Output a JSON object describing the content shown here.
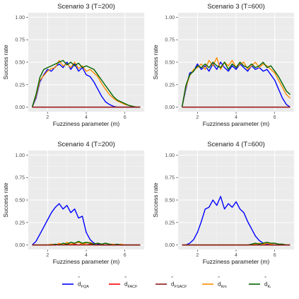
{
  "legend": [
    {
      "key": "fqa",
      "hat": "d",
      "sub": "FQA",
      "color": "#0000ff"
    },
    {
      "key": "facf",
      "hat": "d",
      "sub": "FACF",
      "color": "#ff0000"
    },
    {
      "key": "fsacf",
      "hat": "d",
      "sub": "FSACF",
      "color": "#8b1a1a"
    },
    {
      "key": "km",
      "hat": "d",
      "sub": "Km",
      "color": "#ff8c00"
    },
    {
      "key": "k",
      "hat": "d",
      "sub": "Kₗ",
      "color": "#006400"
    }
  ],
  "chart_data": [
    {
      "type": "line",
      "title": "Scenario 3 (T=200)",
      "xlabel": "Fuzziness parameter (m)",
      "ylabel": "Success rate",
      "xlim": [
        1,
        7
      ],
      "ylim": [
        0,
        1
      ],
      "x_ticks": [
        "2",
        "4",
        "6"
      ],
      "y_ticks": [
        "0.00",
        "0.25",
        "0.50",
        "0.75",
        "1.00"
      ],
      "x": [
        1.2,
        1.4,
        1.6,
        1.8,
        2.0,
        2.2,
        2.4,
        2.6,
        2.8,
        3.0,
        3.2,
        3.4,
        3.6,
        3.8,
        4.0,
        4.2,
        4.4,
        4.6,
        4.8,
        5.0,
        5.2,
        5.4,
        5.6,
        5.8,
        6.0,
        6.2,
        6.4,
        6.6,
        6.8
      ],
      "series": [
        {
          "key": "fqa",
          "values": [
            0.0,
            0.1,
            0.28,
            0.36,
            0.42,
            0.4,
            0.45,
            0.48,
            0.44,
            0.5,
            0.42,
            0.48,
            0.4,
            0.44,
            0.36,
            0.34,
            0.28,
            0.2,
            0.12,
            0.06,
            0.03,
            0.01,
            0.0,
            0.0,
            0.0,
            0.0,
            0.0,
            0.0,
            0.0
          ]
        },
        {
          "key": "facf",
          "values": [
            0.0,
            0.0,
            0.0,
            0.0,
            0.0,
            0.0,
            0.0,
            0.0,
            0.0,
            0.0,
            0.0,
            0.0,
            0.0,
            0.0,
            0.0,
            0.0,
            0.0,
            0.0,
            0.0,
            0.0,
            0.0,
            0.0,
            0.0,
            0.0,
            0.0,
            0.0,
            0.0,
            0.0,
            0.0
          ]
        },
        {
          "key": "fsacf",
          "values": [
            0.0,
            0.0,
            0.0,
            0.0,
            0.0,
            0.0,
            0.0,
            0.0,
            0.0,
            0.0,
            0.0,
            0.0,
            0.0,
            0.0,
            0.0,
            0.0,
            0.0,
            0.0,
            0.0,
            0.0,
            0.0,
            0.0,
            0.0,
            0.0,
            0.0,
            0.0,
            0.0,
            0.0,
            0.0
          ]
        },
        {
          "key": "km",
          "values": [
            0.0,
            0.12,
            0.3,
            0.35,
            0.4,
            0.43,
            0.44,
            0.52,
            0.46,
            0.48,
            0.44,
            0.5,
            0.43,
            0.46,
            0.4,
            0.42,
            0.38,
            0.34,
            0.26,
            0.2,
            0.14,
            0.1,
            0.07,
            0.05,
            0.03,
            0.02,
            0.01,
            0.0,
            0.0
          ]
        },
        {
          "key": "k",
          "values": [
            0.0,
            0.14,
            0.33,
            0.42,
            0.44,
            0.46,
            0.48,
            0.5,
            0.52,
            0.47,
            0.5,
            0.46,
            0.49,
            0.44,
            0.46,
            0.44,
            0.42,
            0.36,
            0.3,
            0.24,
            0.18,
            0.12,
            0.08,
            0.06,
            0.04,
            0.02,
            0.01,
            0.0,
            0.0
          ]
        }
      ]
    },
    {
      "type": "line",
      "title": "Scenario 3 (T=600)",
      "xlabel": "Fuzziness parameter (m)",
      "ylabel": "Success rate",
      "xlim": [
        1,
        7
      ],
      "ylim": [
        0,
        1
      ],
      "x_ticks": [
        "2",
        "4",
        "6"
      ],
      "y_ticks": [
        "0.00",
        "0.25",
        "0.50",
        "0.75",
        "1.00"
      ],
      "x": [
        1.2,
        1.4,
        1.6,
        1.8,
        2.0,
        2.2,
        2.4,
        2.6,
        2.8,
        3.0,
        3.2,
        3.4,
        3.6,
        3.8,
        4.0,
        4.2,
        4.4,
        4.6,
        4.8,
        5.0,
        5.2,
        5.4,
        5.6,
        5.8,
        6.0,
        6.2,
        6.4,
        6.6,
        6.8
      ],
      "series": [
        {
          "key": "fqa",
          "values": [
            0.0,
            0.2,
            0.38,
            0.4,
            0.48,
            0.42,
            0.46,
            0.4,
            0.48,
            0.42,
            0.5,
            0.44,
            0.4,
            0.46,
            0.42,
            0.48,
            0.44,
            0.4,
            0.46,
            0.42,
            0.44,
            0.4,
            0.42,
            0.36,
            0.3,
            0.2,
            0.1,
            0.03,
            0.0
          ]
        },
        {
          "key": "facf",
          "values": [
            0.0,
            0.0,
            0.0,
            0.0,
            0.0,
            0.0,
            0.0,
            0.0,
            0.0,
            0.0,
            0.0,
            0.0,
            0.0,
            0.0,
            0.0,
            0.0,
            0.0,
            0.0,
            0.0,
            0.0,
            0.0,
            0.0,
            0.0,
            0.0,
            0.0,
            0.0,
            0.0,
            0.0,
            0.0
          ]
        },
        {
          "key": "fsacf",
          "values": [
            0.0,
            0.0,
            0.0,
            0.0,
            0.0,
            0.0,
            0.0,
            0.0,
            0.0,
            0.0,
            0.0,
            0.0,
            0.0,
            0.0,
            0.0,
            0.0,
            0.0,
            0.0,
            0.0,
            0.0,
            0.0,
            0.0,
            0.0,
            0.0,
            0.0,
            0.0,
            0.0,
            0.0,
            0.0
          ]
        },
        {
          "key": "km",
          "values": [
            0.0,
            0.22,
            0.35,
            0.42,
            0.44,
            0.48,
            0.42,
            0.52,
            0.46,
            0.55,
            0.42,
            0.5,
            0.46,
            0.52,
            0.44,
            0.48,
            0.5,
            0.42,
            0.46,
            0.5,
            0.44,
            0.48,
            0.46,
            0.42,
            0.38,
            0.3,
            0.22,
            0.14,
            0.1
          ]
        },
        {
          "key": "k",
          "values": [
            0.0,
            0.24,
            0.36,
            0.4,
            0.46,
            0.44,
            0.48,
            0.44,
            0.5,
            0.46,
            0.44,
            0.5,
            0.42,
            0.48,
            0.44,
            0.5,
            0.46,
            0.44,
            0.48,
            0.44,
            0.46,
            0.5,
            0.44,
            0.46,
            0.4,
            0.34,
            0.26,
            0.18,
            0.14
          ]
        }
      ]
    },
    {
      "type": "line",
      "title": "Scenario 4 (T=200)",
      "xlabel": "Fuzziness parameter (m)",
      "ylabel": "Success rate",
      "xlim": [
        1,
        7
      ],
      "ylim": [
        0,
        1
      ],
      "x_ticks": [
        "2",
        "4",
        "6"
      ],
      "y_ticks": [
        "0.00",
        "0.25",
        "0.50",
        "0.75",
        "1.00"
      ],
      "x": [
        1.2,
        1.4,
        1.6,
        1.8,
        2.0,
        2.2,
        2.4,
        2.6,
        2.8,
        3.0,
        3.2,
        3.4,
        3.6,
        3.8,
        4.0,
        4.2,
        4.4,
        4.6,
        4.8,
        5.0,
        5.2,
        5.4,
        5.6,
        5.8,
        6.0,
        6.2,
        6.4,
        6.6,
        6.8
      ],
      "series": [
        {
          "key": "fqa",
          "values": [
            0.0,
            0.04,
            0.12,
            0.2,
            0.28,
            0.36,
            0.42,
            0.46,
            0.4,
            0.44,
            0.36,
            0.4,
            0.3,
            0.32,
            0.14,
            0.06,
            0.02,
            0.01,
            0.0,
            0.0,
            0.0,
            0.0,
            0.0,
            0.0,
            0.0,
            0.0,
            0.0,
            0.0,
            0.0
          ]
        },
        {
          "key": "facf",
          "values": [
            0.0,
            0.0,
            0.0,
            0.0,
            0.0,
            0.0,
            0.0,
            0.01,
            0.0,
            0.01,
            0.0,
            0.01,
            0.0,
            0.01,
            0.0,
            0.01,
            0.0,
            0.0,
            0.0,
            0.0,
            0.0,
            0.0,
            0.0,
            0.0,
            0.0,
            0.0,
            0.0,
            0.0,
            0.0
          ]
        },
        {
          "key": "fsacf",
          "values": [
            0.0,
            0.0,
            0.0,
            0.0,
            0.0,
            0.0,
            0.0,
            0.0,
            0.0,
            0.0,
            0.0,
            0.0,
            0.0,
            0.0,
            0.0,
            0.0,
            0.0,
            0.0,
            0.0,
            0.0,
            0.0,
            0.0,
            0.0,
            0.0,
            0.0,
            0.0,
            0.0,
            0.0,
            0.0
          ]
        },
        {
          "key": "km",
          "values": [
            0.0,
            0.0,
            0.0,
            0.0,
            0.0,
            0.01,
            0.0,
            0.02,
            0.0,
            0.03,
            0.01,
            0.02,
            0.03,
            0.01,
            0.02,
            0.03,
            0.01,
            0.02,
            0.01,
            0.02,
            0.01,
            0.01,
            0.0,
            0.01,
            0.0,
            0.0,
            0.0,
            0.0,
            0.0
          ]
        },
        {
          "key": "k",
          "values": [
            0.0,
            0.0,
            0.0,
            0.0,
            0.0,
            0.0,
            0.01,
            0.0,
            0.02,
            0.01,
            0.03,
            0.02,
            0.04,
            0.02,
            0.03,
            0.02,
            0.01,
            0.02,
            0.01,
            0.02,
            0.01,
            0.0,
            0.01,
            0.0,
            0.0,
            0.0,
            0.0,
            0.0,
            0.0
          ]
        }
      ]
    },
    {
      "type": "line",
      "title": "Scenario 4 (T=600)",
      "xlabel": "Fuzziness parameter (m)",
      "ylabel": "Success rate",
      "xlim": [
        1,
        7
      ],
      "ylim": [
        0,
        1
      ],
      "x_ticks": [
        "2",
        "4",
        "6"
      ],
      "y_ticks": [
        "0.00",
        "0.25",
        "0.50",
        "0.75",
        "1.00"
      ],
      "x": [
        1.2,
        1.4,
        1.6,
        1.8,
        2.0,
        2.2,
        2.4,
        2.6,
        2.8,
        3.0,
        3.2,
        3.4,
        3.6,
        3.8,
        4.0,
        4.2,
        4.4,
        4.6,
        4.8,
        5.0,
        5.2,
        5.4,
        5.6,
        5.8,
        6.0,
        6.2,
        6.4,
        6.6,
        6.8
      ],
      "series": [
        {
          "key": "fqa",
          "values": [
            0.0,
            0.0,
            0.02,
            0.06,
            0.14,
            0.26,
            0.4,
            0.42,
            0.5,
            0.44,
            0.54,
            0.4,
            0.46,
            0.42,
            0.48,
            0.4,
            0.36,
            0.26,
            0.18,
            0.1,
            0.05,
            0.02,
            0.01,
            0.0,
            0.0,
            0.0,
            0.0,
            0.0,
            0.0
          ]
        },
        {
          "key": "facf",
          "values": [
            0.0,
            0.0,
            0.0,
            0.0,
            0.0,
            0.0,
            0.0,
            0.0,
            0.0,
            0.0,
            0.0,
            0.0,
            0.0,
            0.0,
            0.0,
            0.0,
            0.0,
            0.0,
            0.0,
            0.0,
            0.0,
            0.0,
            0.0,
            0.0,
            0.0,
            0.0,
            0.0,
            0.0,
            0.0
          ]
        },
        {
          "key": "fsacf",
          "values": [
            0.0,
            0.0,
            0.0,
            0.0,
            0.0,
            0.0,
            0.0,
            0.0,
            0.0,
            0.0,
            0.0,
            0.0,
            0.0,
            0.0,
            0.0,
            0.0,
            0.0,
            0.0,
            0.0,
            0.0,
            0.0,
            0.0,
            0.0,
            0.0,
            0.0,
            0.0,
            0.0,
            0.0,
            0.0
          ]
        },
        {
          "key": "km",
          "values": [
            0.0,
            0.0,
            0.0,
            0.0,
            0.0,
            0.0,
            0.0,
            0.0,
            0.0,
            0.0,
            0.0,
            0.0,
            0.0,
            0.0,
            0.0,
            0.0,
            0.0,
            0.0,
            0.0,
            0.01,
            0.02,
            0.01,
            0.02,
            0.01,
            0.02,
            0.01,
            0.01,
            0.0,
            0.0
          ]
        },
        {
          "key": "k",
          "values": [
            0.0,
            0.0,
            0.0,
            0.0,
            0.0,
            0.0,
            0.0,
            0.0,
            0.0,
            0.0,
            0.0,
            0.0,
            0.0,
            0.0,
            0.0,
            0.0,
            0.0,
            0.0,
            0.01,
            0.02,
            0.01,
            0.02,
            0.03,
            0.02,
            0.02,
            0.01,
            0.01,
            0.0,
            0.0
          ]
        }
      ]
    }
  ]
}
